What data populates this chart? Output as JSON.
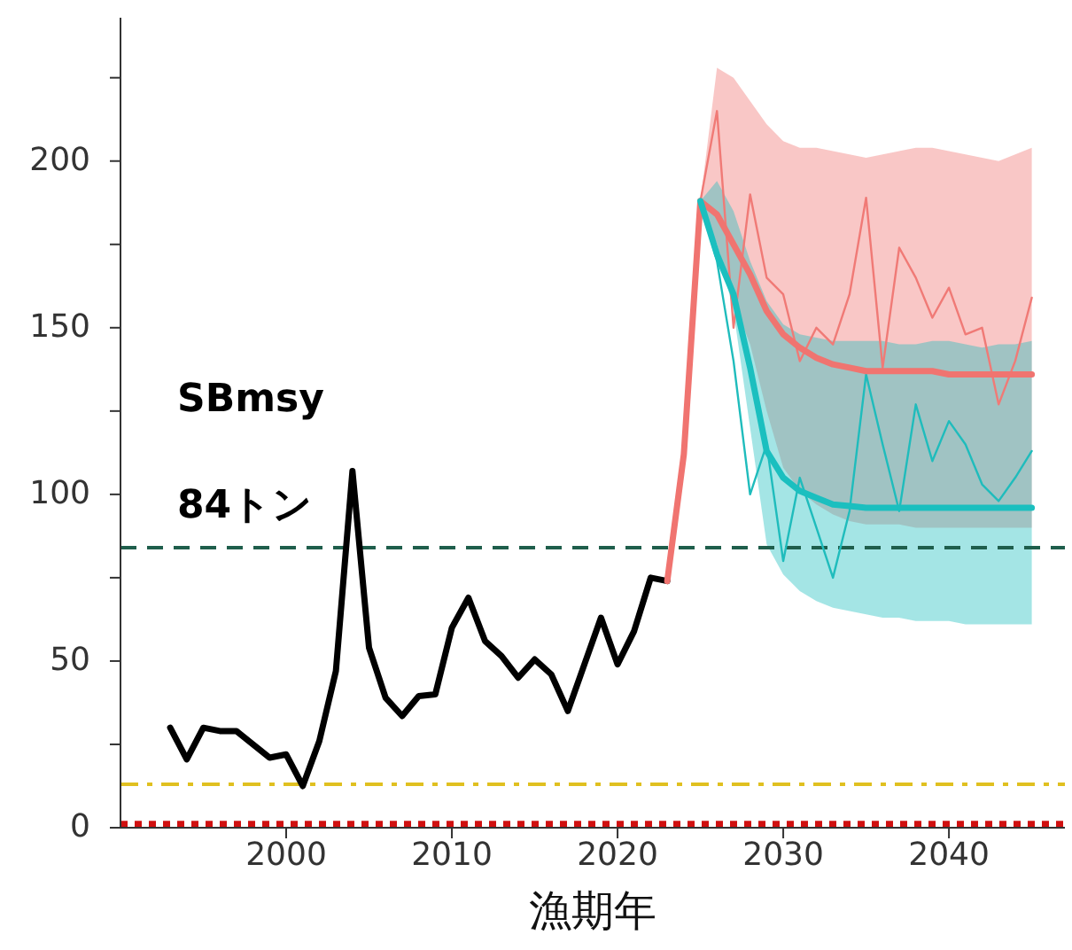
{
  "chart_data": {
    "type": "line",
    "xlabel": "漁期年",
    "xlim": [
      1990,
      2047
    ],
    "xticks": [
      2000,
      2010,
      2020,
      2030,
      2040
    ],
    "ylim": [
      0,
      243
    ],
    "yticks": [
      0,
      {
        "value": 25,
        "label": null
      },
      50,
      {
        "value": 75,
        "label": null
      },
      100,
      {
        "value": 125,
        "label": null
      },
      150,
      {
        "value": 175,
        "label": null
      },
      200,
      {
        "value": 225,
        "label": null
      }
    ],
    "grid": false,
    "legend": false,
    "marker": "none",
    "series": [
      {
        "color": "#000000",
        "x": [
          1993,
          1994,
          1995,
          1996,
          1997,
          1998,
          1999,
          2000,
          2001,
          2002,
          2003,
          2004,
          2005,
          2006,
          2007,
          2008,
          2009,
          2010,
          2011,
          2012,
          2013,
          2014,
          2015,
          2016,
          2017,
          2018,
          2019,
          2020,
          2021,
          2022,
          2023
        ],
        "values": [
          30,
          20.5,
          30,
          29,
          29,
          25,
          21,
          22,
          12.5,
          26,
          47,
          107,
          54,
          39,
          33.5,
          39.5,
          40,
          60,
          69,
          56,
          51.5,
          45,
          50.5,
          46,
          35,
          49,
          63,
          49,
          59,
          75,
          74
        ]
      },
      {
        "color": "#f07a76",
        "x": [
          2025,
          2026,
          2027,
          2028,
          2029,
          2030,
          2031,
          2032,
          2033,
          2034,
          2035,
          2036,
          2037,
          2038,
          2039,
          2040,
          2041,
          2042,
          2043,
          2044,
          2045
        ],
        "values": [
          188,
          215,
          150,
          190,
          165,
          160,
          140,
          150,
          145,
          160,
          189,
          138,
          174,
          165,
          153,
          162,
          148,
          150,
          127,
          140,
          159
        ]
      },
      {
        "color": "#1fbcbc",
        "x": [
          2025,
          2026,
          2027,
          2028,
          2029,
          2030,
          2031,
          2032,
          2033,
          2034,
          2035,
          2036,
          2037,
          2038,
          2039,
          2040,
          2041,
          2042,
          2043,
          2044,
          2045
        ],
        "values": [
          188,
          170,
          140,
          100,
          115,
          80,
          105,
          90,
          75,
          95,
          136,
          115,
          95,
          127,
          110,
          122,
          115,
          103,
          98,
          105,
          113
        ]
      },
      {
        "color": "#f07470",
        "x": [
          2023,
          2024,
          2025,
          2026,
          2027,
          2028,
          2029,
          2030,
          2031,
          2032,
          2033,
          2034,
          2035,
          2036,
          2037,
          2038,
          2039,
          2040,
          2041,
          2042,
          2043,
          2044,
          2045
        ],
        "values": [
          74,
          112,
          188,
          184,
          175,
          166,
          155,
          148,
          144,
          141,
          139,
          138,
          137,
          137,
          137,
          137,
          137,
          136,
          136,
          136,
          136,
          136,
          136
        ],
        "lower": [
          null,
          null,
          188,
          175,
          158,
          145,
          125,
          108,
          101,
          97,
          94,
          92,
          91,
          91,
          91,
          90,
          90,
          90,
          90,
          90,
          90,
          90,
          90
        ],
        "upper": [
          null,
          null,
          188,
          228,
          225,
          218,
          211,
          206,
          204,
          204,
          203,
          202,
          201,
          202,
          203,
          204,
          204,
          203,
          202,
          201,
          200,
          202,
          204
        ]
      },
      {
        "color": "#1bbfbf",
        "x": [
          2025,
          2026,
          2027,
          2028,
          2029,
          2030,
          2031,
          2032,
          2033,
          2034,
          2035,
          2036,
          2037,
          2038,
          2039,
          2040,
          2041,
          2042,
          2043,
          2044,
          2045
        ],
        "values": [
          188,
          172,
          160,
          138,
          113,
          105,
          101,
          99,
          97,
          96.5,
          96,
          96,
          96,
          96,
          96,
          96,
          96,
          96,
          96,
          96,
          96
        ],
        "lower": [
          188,
          175,
          155,
          120,
          85,
          76,
          71,
          68,
          66,
          65,
          64,
          63,
          63,
          62,
          62,
          62,
          61,
          61,
          61,
          61,
          61
        ],
        "upper": [
          188,
          194,
          185,
          170,
          158,
          151,
          148,
          147,
          146,
          146,
          146,
          146,
          145,
          145,
          146,
          146,
          145,
          144,
          145,
          145,
          146
        ]
      }
    ],
    "ref_lines": [
      {
        "axis": "y",
        "value": 84,
        "color": "#1f5e4c",
        "line_style": "dashed"
      },
      {
        "axis": "y",
        "value": 13,
        "color": "#e0c020",
        "line_style": "dashdot"
      },
      {
        "axis": "y",
        "value": 1,
        "color": "#d01010",
        "line_style": "dotted"
      }
    ],
    "annotations": [
      "SBmsy",
      "84トン"
    ]
  }
}
